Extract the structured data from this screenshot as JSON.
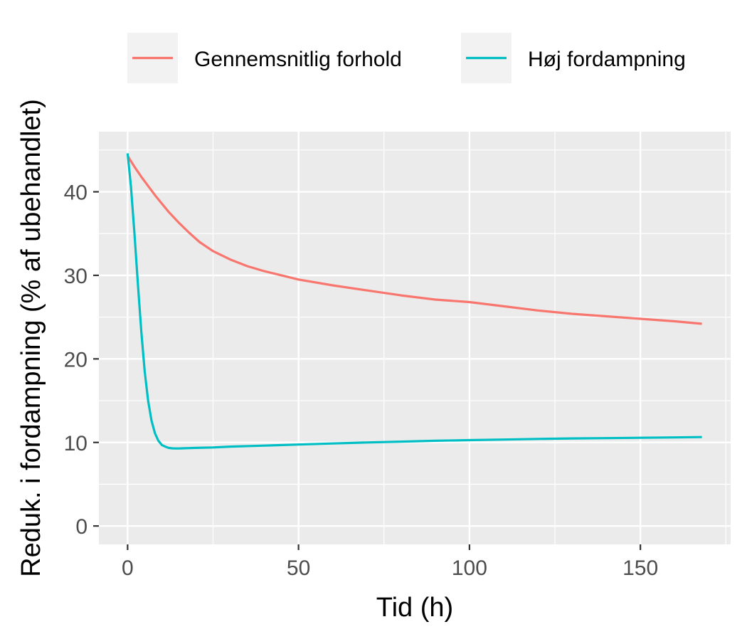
{
  "chart_data": {
    "type": "line",
    "title": "",
    "xlabel": "Tid (h)",
    "ylabel": "Reduk. i fordampning (% af ubehandlet)",
    "xlim": [
      -8.4,
      176.4
    ],
    "ylim": [
      -2.2,
      47.2
    ],
    "x_ticks": [
      0,
      50,
      100,
      150
    ],
    "y_ticks": [
      0,
      10,
      20,
      30,
      40
    ],
    "grid": true,
    "legend_position": "top",
    "series": [
      {
        "name": "Gennemsnitlig forhold",
        "color": "#F8766D",
        "x": [
          0,
          2,
          4,
          6,
          8,
          10,
          12,
          15,
          18,
          21,
          25,
          30,
          35,
          40,
          45,
          50,
          60,
          70,
          80,
          90,
          100,
          110,
          120,
          130,
          140,
          150,
          160,
          168
        ],
        "y": [
          44.3,
          43.0,
          41.8,
          40.7,
          39.6,
          38.6,
          37.6,
          36.3,
          35.1,
          34.0,
          32.9,
          31.9,
          31.1,
          30.5,
          30.0,
          29.5,
          28.8,
          28.2,
          27.6,
          27.1,
          26.8,
          26.3,
          25.8,
          25.4,
          25.1,
          24.8,
          24.5,
          24.2
        ]
      },
      {
        "name": "Høj fordampning",
        "color": "#00BFC4",
        "x": [
          0,
          1,
          2,
          3,
          4,
          5,
          6,
          7,
          8,
          9,
          10,
          11,
          12,
          13,
          14,
          15,
          16,
          18,
          20,
          25,
          30,
          40,
          50,
          60,
          70,
          80,
          90,
          100,
          110,
          120,
          130,
          140,
          150,
          160,
          168
        ],
        "y": [
          44.6,
          40.5,
          35.0,
          29.0,
          23.3,
          18.5,
          15.0,
          12.6,
          11.1,
          10.2,
          9.7,
          9.5,
          9.35,
          9.3,
          9.28,
          9.28,
          9.3,
          9.32,
          9.35,
          9.4,
          9.5,
          9.62,
          9.75,
          9.88,
          10.0,
          10.1,
          10.2,
          10.28,
          10.35,
          10.42,
          10.48,
          10.52,
          10.56,
          10.6,
          10.64
        ]
      }
    ]
  }
}
